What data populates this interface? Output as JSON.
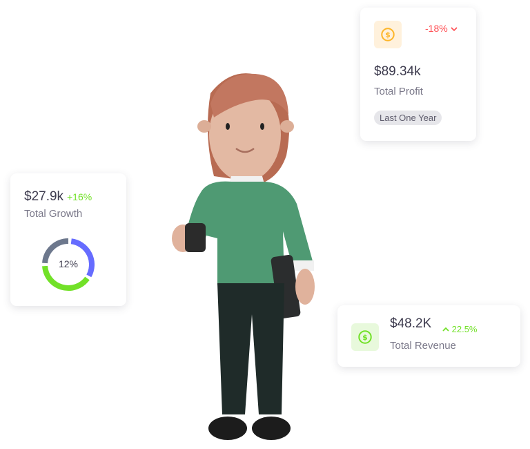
{
  "profit_card": {
    "icon": "dollar-circle-icon",
    "change": "-18%",
    "change_direction": "down",
    "amount": "$89.34k",
    "label": "Total Profit",
    "badge": "Last One Year",
    "colors": {
      "icon": "#fdb528",
      "icon_bg": "#fff1dc",
      "change": "#ff4c51"
    }
  },
  "growth_card": {
    "amount": "$27.9k",
    "change": "+16%",
    "label": "Total Growth",
    "donut_center_label": "12%",
    "donut_segments": [
      {
        "color": "#666cff",
        "fraction": 0.31
      },
      {
        "color": "#72e128",
        "fraction": 0.39
      },
      {
        "color": "#6d788d",
        "fraction": 0.24
      }
    ]
  },
  "revenue_card": {
    "icon": "dollar-circle-icon",
    "amount": "$48.2K",
    "change": "22.5%",
    "change_direction": "up",
    "label": "Total Revenue",
    "colors": {
      "icon": "#72e128",
      "icon_bg": "#e8f9dc",
      "change": "#72e128"
    }
  }
}
